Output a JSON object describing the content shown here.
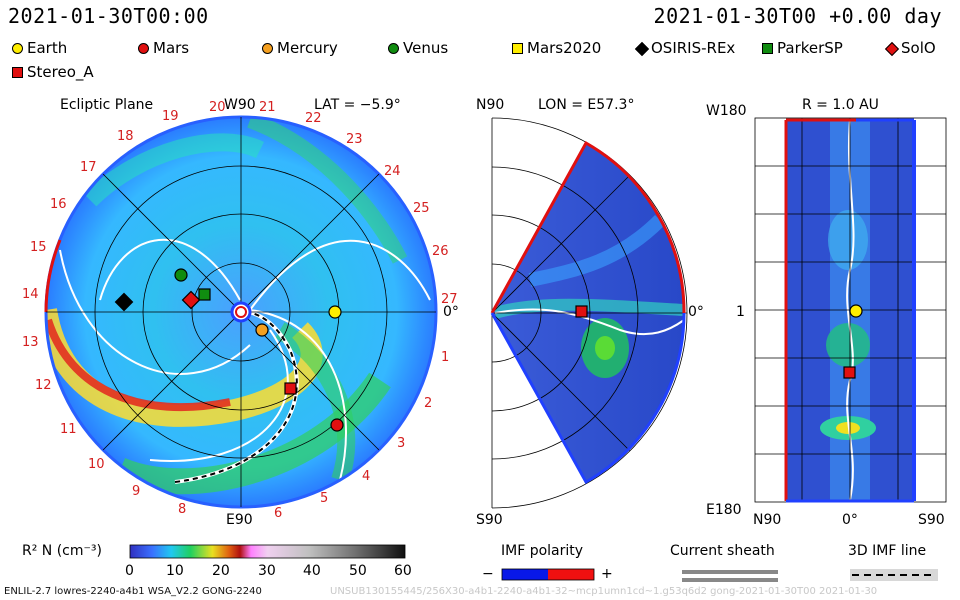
{
  "header": {
    "left_timestamp": "2021-01-30T00:00",
    "right_timestamp": "2021-01-30T00 +0.00 day"
  },
  "legend": {
    "items": [
      {
        "label": "Earth",
        "shape": "circle",
        "color": "#ffee00"
      },
      {
        "label": "Mars",
        "shape": "circle",
        "color": "#e01010"
      },
      {
        "label": "Mercury",
        "shape": "circle",
        "color": "#f5a020"
      },
      {
        "label": "Venus",
        "shape": "circle",
        "color": "#108c10"
      },
      {
        "label": "Mars2020",
        "shape": "square",
        "color": "#ffee00"
      },
      {
        "label": "OSIRIS-REx",
        "shape": "diamond",
        "color": "#000000"
      },
      {
        "label": "ParkerSP",
        "shape": "square",
        "color": "#108c10"
      },
      {
        "label": "SolO",
        "shape": "diamond",
        "color": "#e01010"
      },
      {
        "label": "Stereo_A",
        "shape": "square",
        "color": "#e01010"
      }
    ]
  },
  "ecliptic_panel": {
    "title": "Ecliptic Plane",
    "top_label": "W90",
    "bottom_label": "E90",
    "right_label": "0°",
    "lat_label": "LAT = −5.9°",
    "carrington_ticks": [
      "1",
      "2",
      "3",
      "4",
      "5",
      "6",
      "8",
      "9",
      "10",
      "11",
      "12",
      "13",
      "14",
      "15",
      "16",
      "17",
      "18",
      "19",
      "20",
      "21",
      "22",
      "23",
      "24",
      "25",
      "26",
      "27"
    ]
  },
  "meridional_panel": {
    "top_label": "N90",
    "bottom_label": "S90",
    "right_label": "0°",
    "lon_label": "LON = E57.3°"
  },
  "radial_panel": {
    "title": "R = 1.0 AU",
    "top_left_label": "W180",
    "bottom_left_label": "E180",
    "mid_left_label": "1",
    "x_labels": [
      "N90",
      "0°",
      "S90"
    ]
  },
  "colorbar": {
    "label": "R² N (cm⁻³)",
    "ticks": [
      "0",
      "10",
      "20",
      "30",
      "40",
      "50",
      "60"
    ]
  },
  "imf_polarity": {
    "title": "IMF polarity",
    "minus": "−",
    "plus": "+"
  },
  "current_sheath": {
    "title": "Current sheath"
  },
  "imf_line": {
    "title": "3D IMF line"
  },
  "footer": {
    "model_info": "ENLIL-2.7 lowres-2240-a4b1 WSA_V2.2 GONG-2240",
    "run_id": "UNSUB130155445/256X30-a4b1-2240-a4b1-32~mcp1umn1cd~1.g53q6d2 gong-2021-01-30T00 2021-01-30"
  }
}
